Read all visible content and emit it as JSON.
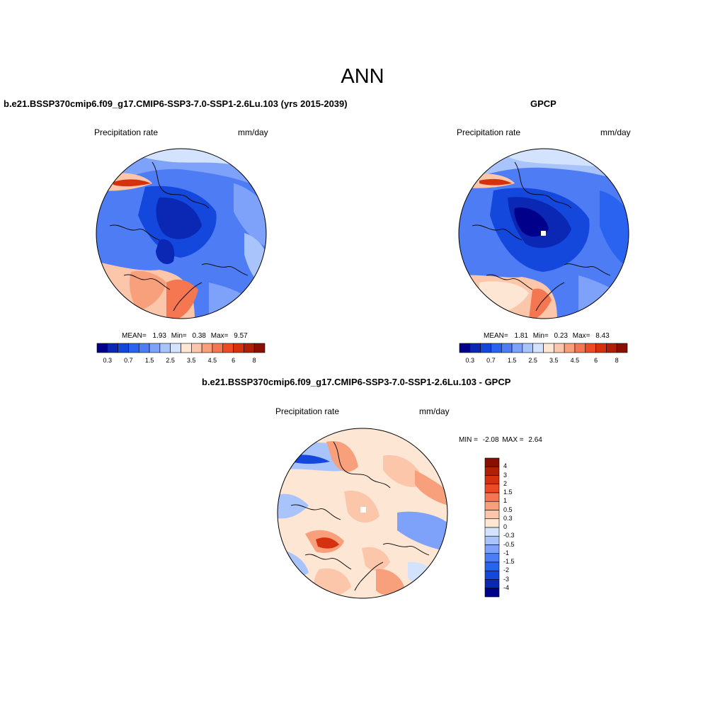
{
  "figure": {
    "title": "ANN"
  },
  "panels": [
    {
      "id": "model",
      "title": "b.e21.BSSP370cmip6.f09_g17.CMIP6-SSP3-7.0-SSP1-2.6Lu.103 (yrs 2015-2039)",
      "left_label": "Precipitation rate",
      "right_label": "mm/day",
      "stats": {
        "mean_label": "MEAN=",
        "mean": "1.93",
        "min_label": "Min=",
        "min": "0.38",
        "max_label": "Max=",
        "max": "9.57"
      },
      "colorbar": {
        "colors": [
          "#00008b",
          "#0a28b4",
          "#1447dc",
          "#2a63f0",
          "#4d7cf5",
          "#7ea1fa",
          "#a9c3fb",
          "#d4e3fd",
          "#fde6d4",
          "#fbc6a9",
          "#f8a07c",
          "#f47751",
          "#ee4a23",
          "#d6310f",
          "#b02007",
          "#8a0f02"
        ],
        "tick_labels": [
          "0.3",
          "0.7",
          "1.5",
          "2.5",
          "3.5",
          "4.5",
          "6",
          "8"
        ]
      }
    },
    {
      "id": "obs",
      "title": "GPCP",
      "left_label": "Precipitation rate",
      "right_label": "mm/day",
      "stats": {
        "mean_label": "MEAN=",
        "mean": "1.81",
        "min_label": "Min=",
        "min": "0.23",
        "max_label": "Max=",
        "max": "8.43"
      },
      "colorbar": {
        "colors": [
          "#00008b",
          "#0a28b4",
          "#1447dc",
          "#2a63f0",
          "#4d7cf5",
          "#7ea1fa",
          "#a9c3fb",
          "#d4e3fd",
          "#fde6d4",
          "#fbc6a9",
          "#f8a07c",
          "#f47751",
          "#ee4a23",
          "#d6310f",
          "#b02007",
          "#8a0f02"
        ],
        "tick_labels": [
          "0.3",
          "0.7",
          "1.5",
          "2.5",
          "3.5",
          "4.5",
          "6",
          "8"
        ]
      }
    },
    {
      "id": "diff",
      "title": "b.e21.BSSP370cmip6.f09_g17.CMIP6-SSP3-7.0-SSP1-2.6Lu.103 - GPCP",
      "left_label": "Precipitation rate",
      "right_label": "mm/day",
      "stats": {
        "min_label": "MIN =",
        "min": "-2.08",
        "max_label": "MAX =",
        "max": "2.64"
      },
      "colorbar": {
        "colors_top_to_bottom": [
          "#8a0f02",
          "#b02007",
          "#d6310f",
          "#ee4a23",
          "#f47751",
          "#f8a07c",
          "#fbc6a9",
          "#fde6d4",
          "#d4e3fd",
          "#a9c3fb",
          "#7ea1fa",
          "#4d7cf5",
          "#2a63f0",
          "#1447dc",
          "#0a28b4",
          "#00008b"
        ],
        "tick_labels_top_to_bottom": [
          "4",
          "3",
          "2",
          "1.5",
          "1",
          "0.5",
          "0.3",
          "0",
          "-0.3",
          "-0.5",
          "-1",
          "-1.5",
          "-2",
          "-3",
          "-4"
        ]
      }
    }
  ]
}
